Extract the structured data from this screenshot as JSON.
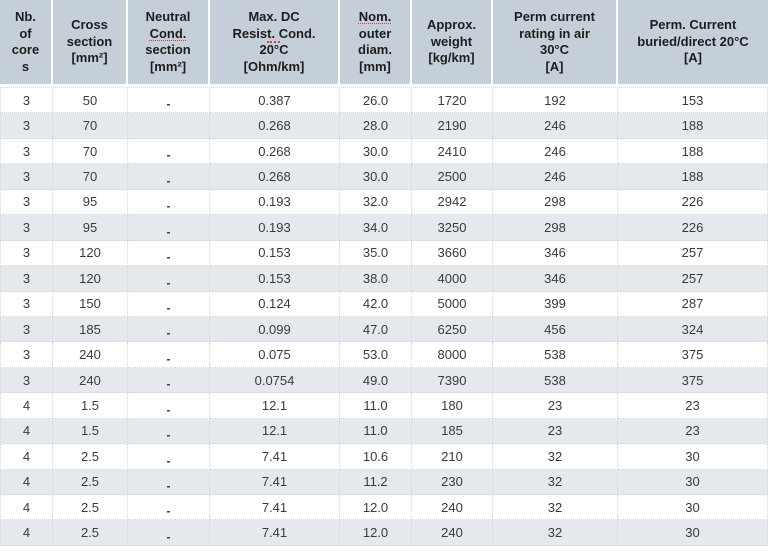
{
  "table": {
    "description_name": "cable-specification-table",
    "columns": [
      {
        "id": "nb-of-cores",
        "header_lines": [
          "Nb.",
          "of",
          "core",
          "s"
        ]
      },
      {
        "id": "cross-section",
        "header_lines": [
          "Cross",
          "section",
          "[mm²]"
        ]
      },
      {
        "id": "neutral-cond-section",
        "header_lines": [
          "Neutral",
          "Cond.",
          "section",
          "[mm²]"
        ],
        "misspelled_lines": [
          1
        ]
      },
      {
        "id": "max-dc-resist",
        "header_lines": [
          "Max. DC",
          "Resist. Cond.",
          "20°C",
          "[Ohm/km]"
        ],
        "partial_underline_lines": [
          1
        ]
      },
      {
        "id": "nom-outer-diam",
        "header_lines": [
          "Nom.",
          "outer",
          "diam.",
          "[mm]"
        ],
        "misspelled_lines": [
          0
        ]
      },
      {
        "id": "approx-weight",
        "header_lines": [
          "Approx.",
          "weight",
          "[kg/km]"
        ]
      },
      {
        "id": "perm-current-air",
        "header_lines": [
          "Perm current",
          "rating in air",
          "30°C",
          "[A]"
        ]
      },
      {
        "id": "perm-current-buried",
        "header_lines": [
          "Perm. Current",
          "buried/direct 20°C",
          "[A]"
        ]
      }
    ],
    "rows": [
      [
        "3",
        "50",
        "-",
        "0.387",
        "26.0",
        "1720",
        "192",
        "153"
      ],
      [
        "3",
        "70",
        "",
        "0.268",
        "28.0",
        "2190",
        "246",
        "188"
      ],
      [
        "3",
        "70",
        "-",
        "0.268",
        "30.0",
        "2410",
        "246",
        "188"
      ],
      [
        "3",
        "70",
        "-",
        "0.268",
        "30.0",
        "2500",
        "246",
        "188"
      ],
      [
        "3",
        "95",
        "-",
        "0.193",
        "32.0",
        "2942",
        "298",
        "226"
      ],
      [
        "3",
        "95",
        "-",
        "0.193",
        "34.0",
        "3250",
        "298",
        "226"
      ],
      [
        "3",
        "120",
        "-",
        "0.153",
        "35.0",
        "3660",
        "346",
        "257"
      ],
      [
        "3",
        "120",
        "-",
        "0.153",
        "38.0",
        "4000",
        "346",
        "257"
      ],
      [
        "3",
        "150",
        "-",
        "0.124",
        "42.0",
        "5000",
        "399",
        "287"
      ],
      [
        "3",
        "185",
        "-",
        "0.099",
        "47.0",
        "6250",
        "456",
        "324"
      ],
      [
        "3",
        "240",
        "-",
        "0.075",
        "53.0",
        "8000",
        "538",
        "375"
      ],
      [
        "3",
        "240",
        "-",
        "0.0754",
        "49.0",
        "7390",
        "538",
        "375"
      ],
      [
        "4",
        "1.5",
        "-",
        "12.1",
        "11.0",
        "180",
        "23",
        "23"
      ],
      [
        "4",
        "1.5",
        "-",
        "12.1",
        "11.0",
        "185",
        "23",
        "23"
      ],
      [
        "4",
        "2.5",
        "-",
        "7.41",
        "10.6",
        "210",
        "32",
        "30"
      ],
      [
        "4",
        "2.5",
        "-",
        "7.41",
        "11.2",
        "230",
        "32",
        "30"
      ],
      [
        "4",
        "2.5",
        "-",
        "7.41",
        "12.0",
        "240",
        "32",
        "30"
      ],
      [
        "4",
        "2.5",
        "-",
        "7.41",
        "12.0",
        "240",
        "32",
        "30"
      ]
    ],
    "clipped_next_row_visible": true
  },
  "colors": {
    "header_bg": "#c5cfd9",
    "header_text": "#1d1d1d",
    "row_bg": "#ffffff",
    "row_alt_bg": "#e5e9ee",
    "text": "#3a3a3a",
    "border": "#d2d6da",
    "spellcheck_red": "#dd3b33"
  }
}
